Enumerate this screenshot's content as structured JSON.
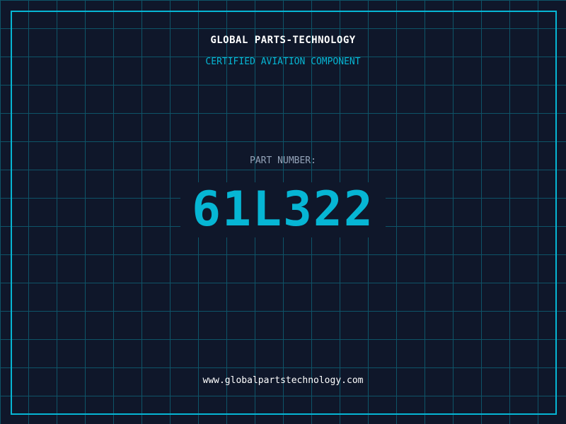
{
  "header": {
    "title": "GLOBAL PARTS-TECHNOLOGY",
    "subtitle": "CERTIFIED AVIATION COMPONENT"
  },
  "part": {
    "label": "PART NUMBER:",
    "number": "61L322"
  },
  "footer": {
    "url": "www.globalpartstechnology.com"
  },
  "colors": {
    "background": "#0f172a",
    "grid": "#0e5468",
    "accent": "#06b6d4",
    "text": "#ffffff",
    "muted": "#94a3b8"
  }
}
